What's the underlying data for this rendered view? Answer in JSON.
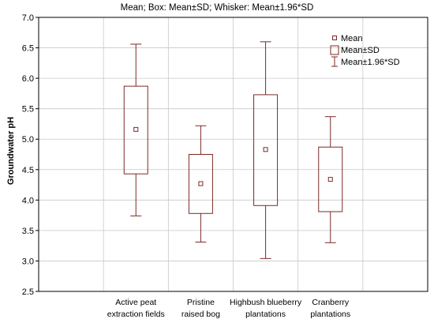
{
  "chart_data": {
    "type": "box",
    "title": "Mean; Box: Mean±SD; Whisker: Mean±1.96*SD",
    "ylabel": "Groundwater pH",
    "xlabel": "",
    "ylim": [
      2.5,
      7.0
    ],
    "yticks": [
      2.5,
      3.0,
      3.5,
      4.0,
      4.5,
      5.0,
      5.5,
      6.0,
      6.5,
      7.0
    ],
    "ytick_labels": [
      "2.5",
      "3.0",
      "3.5",
      "4.0",
      "4.5",
      "5.0",
      "5.5",
      "6.0",
      "6.5",
      "7.0"
    ],
    "grid": true,
    "legend_position": "top-right",
    "legend": [
      "Mean",
      "Mean±SD",
      "Mean±1.96*SD"
    ],
    "categories": [
      [
        "Active peat",
        "extraction fields"
      ],
      [
        "Pristine",
        "raised bog"
      ],
      [
        "Highbush blueberry",
        "plantations"
      ],
      [
        "Cranberry",
        "plantations"
      ]
    ],
    "boxes": [
      {
        "mean": 5.16,
        "sd_low": 4.43,
        "sd_high": 5.87,
        "whisker_low": 3.74,
        "whisker_high": 6.56
      },
      {
        "mean": 4.27,
        "sd_low": 3.78,
        "sd_high": 4.75,
        "whisker_low": 3.31,
        "whisker_high": 5.22
      },
      {
        "mean": 4.83,
        "sd_low": 3.91,
        "sd_high": 5.73,
        "whisker_low": 3.04,
        "whisker_high": 6.6
      },
      {
        "mean": 4.34,
        "sd_low": 3.81,
        "sd_high": 4.87,
        "whisker_low": 3.3,
        "whisker_high": 5.37
      }
    ],
    "colors": {
      "box": "#7b2a26",
      "mean_marker": "#7b2a26",
      "grid": "#c8c8c8",
      "axis": "#000000"
    }
  }
}
